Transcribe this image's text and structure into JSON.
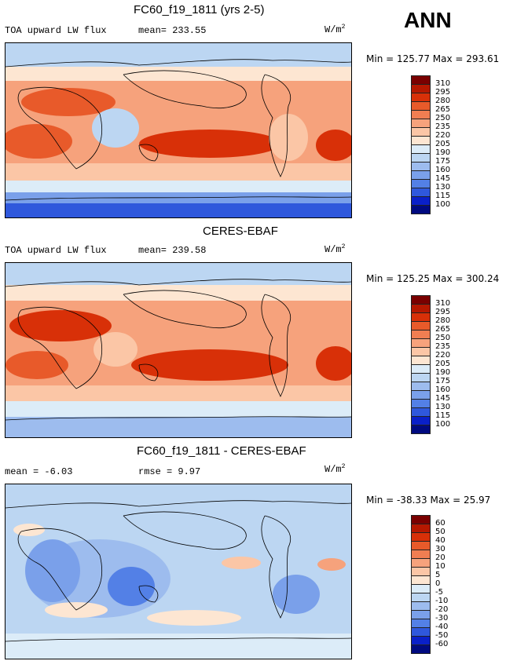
{
  "season": "ANN",
  "panels": [
    {
      "title": "FC60_f19_1811 (yrs 2-5)",
      "left_text": "TOA upward LW flux",
      "mid_text": "mean= 233.55",
      "units": "W/m",
      "units_sup": "2",
      "minmax": "Min = 125.77 Max = 293.61",
      "colorbar": {
        "labels": [
          "310",
          "295",
          "280",
          "265",
          "250",
          "235",
          "220",
          "205",
          "190",
          "175",
          "160",
          "145",
          "130",
          "115",
          "100"
        ],
        "colors": [
          "#7a0000",
          "#b51800",
          "#d83008",
          "#e85a2a",
          "#f07e52",
          "#f6a27c",
          "#fbc6a6",
          "#fde6d2",
          "#dcecf8",
          "#bcd6f2",
          "#9dbcee",
          "#7aa0ea",
          "#5380e6",
          "#2f58dc",
          "#0a20c8",
          "#000a80"
        ]
      }
    },
    {
      "title": "CERES-EBAF",
      "left_text": "TOA upward LW flux",
      "mid_text": "mean= 239.58",
      "units": "W/m",
      "units_sup": "2",
      "minmax": "Min = 125.25 Max = 300.24",
      "colorbar": {
        "labels": [
          "310",
          "295",
          "280",
          "265",
          "250",
          "235",
          "220",
          "205",
          "190",
          "175",
          "160",
          "145",
          "130",
          "115",
          "100"
        ],
        "colors": [
          "#7a0000",
          "#b51800",
          "#d83008",
          "#e85a2a",
          "#f07e52",
          "#f6a27c",
          "#fbc6a6",
          "#fde6d2",
          "#dcecf8",
          "#bcd6f2",
          "#9dbcee",
          "#7aa0ea",
          "#5380e6",
          "#2f58dc",
          "#0a20c8",
          "#000a80"
        ]
      }
    },
    {
      "title": "FC60_f19_1811 - CERES-EBAF",
      "left_text": "mean =  -6.03",
      "mid_text": "rmse =   9.97",
      "units": "W/m",
      "units_sup": "2",
      "minmax": "Min = -38.33 Max =  25.97",
      "colorbar": {
        "labels": [
          "60",
          "50",
          "40",
          "30",
          "20",
          "10",
          "5",
          "0",
          "-5",
          "-10",
          "-20",
          "-30",
          "-40",
          "-50",
          "-60"
        ],
        "colors": [
          "#7a0000",
          "#b51800",
          "#d83008",
          "#e85a2a",
          "#f07e52",
          "#f6a27c",
          "#fbc6a6",
          "#fde6d2",
          "#dcecf8",
          "#bcd6f2",
          "#9dbcee",
          "#7aa0ea",
          "#5380e6",
          "#2f58dc",
          "#0a20c8",
          "#000a80"
        ]
      }
    }
  ]
}
